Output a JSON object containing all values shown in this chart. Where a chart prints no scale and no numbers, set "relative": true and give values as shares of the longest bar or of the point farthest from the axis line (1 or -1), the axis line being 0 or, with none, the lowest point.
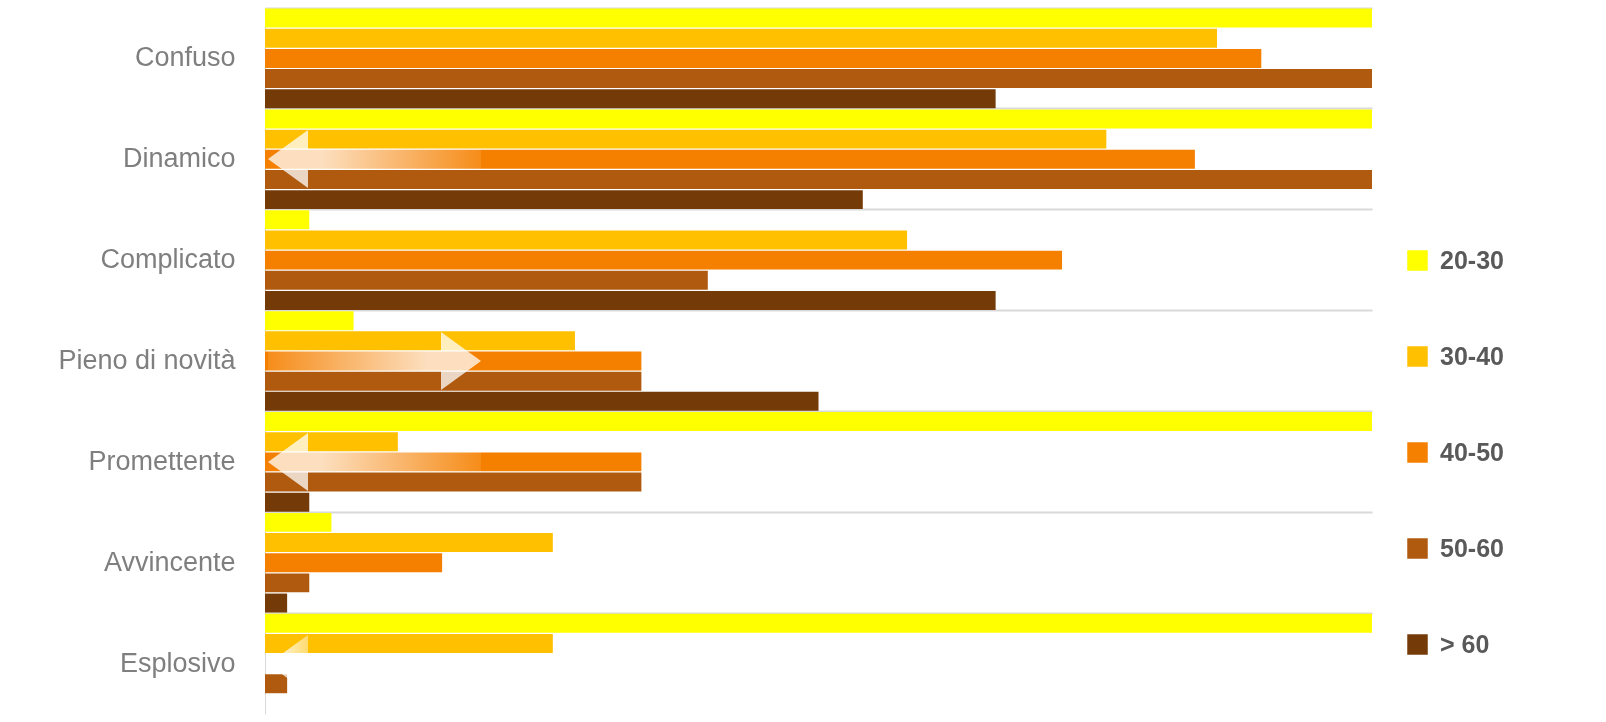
{
  "chart_data": {
    "type": "bar",
    "orientation": "horizontal",
    "relative": true,
    "grid": "y",
    "legend": "right",
    "categories": [
      "Confuso",
      "Dinamico",
      "Complicato",
      "Pieno di novità",
      "Promettente",
      "Avvincente",
      "Esplosivo"
    ],
    "series": [
      {
        "name": "20-30",
        "color": "#ffff00",
        "values": [
          1,
          1,
          0.04,
          0.08,
          1,
          0.06,
          1
        ]
      },
      {
        "name": "30-40",
        "color": "#ffc000",
        "values": [
          0.86,
          0.76,
          0.58,
          0.28,
          0.12,
          0.26,
          0.26
        ]
      },
      {
        "name": "40-50",
        "color": "#f58000",
        "values": [
          0.9,
          0.84,
          0.72,
          0.34,
          0.34,
          0.16,
          null
        ]
      },
      {
        "name": "50-60",
        "color": "#b05a10",
        "values": [
          1,
          1,
          0.4,
          0.34,
          0.34,
          0.04,
          0.02
        ]
      },
      {
        "name": "> 60",
        "color": "#743a08",
        "values": [
          0.66,
          0.54,
          0.66,
          0.5,
          0.04,
          0.02,
          null
        ]
      }
    ]
  }
}
